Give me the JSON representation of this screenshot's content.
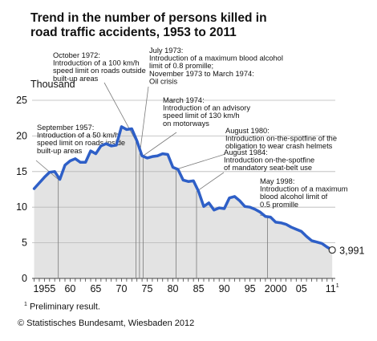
{
  "chart_data": {
    "type": "area",
    "title_line1": "Trend in the number of persons killed in",
    "title_line2": "road traffic accidents, 1953 to 2011",
    "ylabel": "Thousand",
    "ylim": [
      0,
      25
    ],
    "y_ticks": [
      "0",
      "5",
      "10",
      "15",
      "20",
      "25"
    ],
    "x_ticks": [
      {
        "year": 1955,
        "label": "1955"
      },
      {
        "year": 1960,
        "label": "60"
      },
      {
        "year": 1965,
        "label": "65"
      },
      {
        "year": 1970,
        "label": "70"
      },
      {
        "year": 1975,
        "label": "75"
      },
      {
        "year": 1980,
        "label": "80"
      },
      {
        "year": 1985,
        "label": "85"
      },
      {
        "year": 1990,
        "label": "90"
      },
      {
        "year": 1995,
        "label": "95"
      },
      {
        "year": 2000,
        "label": "2000"
      },
      {
        "year": 2005,
        "label": "05"
      },
      {
        "year": 2011,
        "label": "11",
        "sup": "1"
      }
    ],
    "grid": true,
    "x": [
      1953,
      1954,
      1955,
      1956,
      1957,
      1958,
      1959,
      1960,
      1961,
      1962,
      1963,
      1964,
      1965,
      1966,
      1967,
      1968,
      1969,
      1970,
      1971,
      1972,
      1973,
      1974,
      1975,
      1976,
      1977,
      1978,
      1979,
      1980,
      1981,
      1982,
      1983,
      1984,
      1985,
      1986,
      1987,
      1988,
      1989,
      1990,
      1991,
      1992,
      1993,
      1994,
      1995,
      1996,
      1997,
      1998,
      1999,
      2000,
      2001,
      2002,
      2003,
      2004,
      2005,
      2006,
      2007,
      2008,
      2009,
      2010,
      2011
    ],
    "values": [
      12.6,
      13.4,
      14.2,
      14.9,
      15.0,
      13.9,
      15.9,
      16.5,
      16.8,
      16.3,
      16.3,
      17.9,
      17.5,
      18.6,
      18.9,
      18.6,
      18.7,
      21.3,
      20.9,
      21.0,
      19.3,
      17.2,
      16.9,
      17.1,
      17.2,
      17.5,
      17.4,
      15.6,
      15.3,
      13.8,
      13.6,
      13.7,
      12.2,
      10.1,
      10.6,
      9.6,
      9.9,
      9.8,
      11.3,
      11.5,
      10.9,
      10.1,
      10.0,
      9.7,
      9.3,
      8.7,
      8.6,
      7.9,
      7.8,
      7.6,
      7.2,
      6.9,
      6.6,
      5.9,
      5.3,
      5.1,
      4.9,
      4.4,
      3.991
    ],
    "last_value_label": "3,991",
    "annotations": [
      {
        "lines": [
          "September 1957:",
          "Introduction of a 50 km/h",
          "speed limit on roads inside",
          "built-up areas"
        ],
        "year": 1957.7
      },
      {
        "lines": [
          "October 1972:",
          "Introduction of a 100 km/h",
          "speed limit on roads outside",
          "built-up areas"
        ],
        "year": 1972.8
      },
      {
        "lines": [
          "July 1973:",
          "Introduction of a maximum blood alcohol",
          "limit of 0.8 promille;",
          "November 1973 to March 1974:",
          "Oil crisis"
        ],
        "year": 1973.5
      },
      {
        "lines": [
          "March 1974:",
          "Introduction of an advisory",
          "speed limit of 130 km/h",
          "on motorways"
        ],
        "year": 1974.2
      },
      {
        "lines": [
          "August 1980:",
          "Introduction on-the-spotfine of the",
          "obligation to wear crash helmets"
        ],
        "year": 1980.6
      },
      {
        "lines": [
          "August 1984:",
          "Introduction on-the-spotfine",
          "of mandatory seat-belt use"
        ],
        "year": 1984.6
      },
      {
        "lines": [
          "May 1998:",
          "Introduction of a maximum",
          "blood alcohol limit of",
          "0.5 promille"
        ],
        "year": 1998.4
      }
    ],
    "colors": {
      "line": "#2e5fc7",
      "area": "#e3e3e3",
      "grid": "#b8b8b8",
      "marker_fill": "#ffffff"
    }
  },
  "footnote": {
    "sup": "1",
    "text": "Preliminary result."
  },
  "source": "© Statistisches Bundesamt, Wiesbaden 2012"
}
